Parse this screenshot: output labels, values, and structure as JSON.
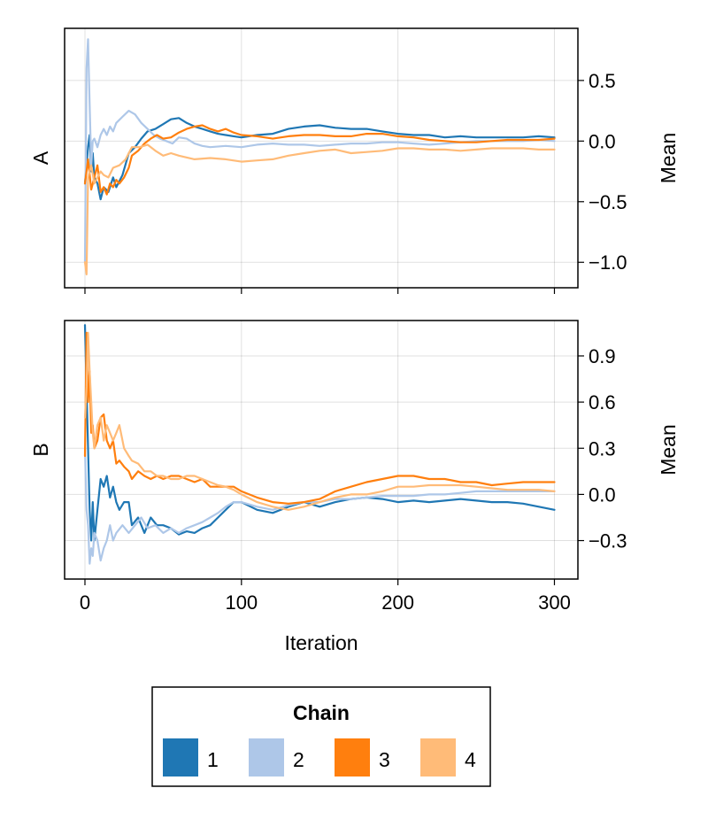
{
  "chart_data": [
    {
      "type": "line",
      "panel_label": "A",
      "ylabel": "Mean",
      "xlabel": "",
      "xlim": [
        -13,
        315
      ],
      "ylim": [
        -1.21,
        0.93
      ],
      "xticks": [
        0,
        100,
        200,
        300
      ],
      "yticks": [
        0.5,
        0.0,
        -0.5,
        -1.0
      ],
      "ytick_labels": [
        "0.5",
        "0.0",
        "−0.5",
        "−1.0"
      ],
      "xtick_labels_visible": false,
      "grid": true,
      "series": [
        {
          "chain": "1",
          "color": "#1f77b4",
          "x": [
            0,
            2,
            3,
            4,
            5,
            6,
            8,
            10,
            12,
            15,
            18,
            20,
            24,
            28,
            32,
            36,
            40,
            45,
            50,
            55,
            60,
            65,
            70,
            75,
            80,
            85,
            90,
            95,
            100,
            110,
            120,
            130,
            140,
            150,
            160,
            170,
            180,
            190,
            200,
            210,
            220,
            230,
            240,
            250,
            260,
            270,
            280,
            290,
            300
          ],
          "y": [
            -0.35,
            -0.05,
            0.05,
            -0.25,
            -0.1,
            -0.3,
            -0.35,
            -0.48,
            -0.38,
            -0.42,
            -0.3,
            -0.38,
            -0.28,
            -0.1,
            -0.05,
            0.02,
            0.08,
            0.1,
            0.14,
            0.18,
            0.19,
            0.15,
            0.12,
            0.1,
            0.08,
            0.06,
            0.05,
            0.04,
            0.03,
            0.05,
            0.06,
            0.1,
            0.12,
            0.13,
            0.11,
            0.1,
            0.1,
            0.08,
            0.06,
            0.05,
            0.05,
            0.03,
            0.04,
            0.03,
            0.03,
            0.03,
            0.03,
            0.04,
            0.03
          ]
        },
        {
          "chain": "2",
          "color": "#aec7e8",
          "x": [
            0,
            1,
            2,
            3,
            4,
            5,
            6,
            8,
            10,
            12,
            14,
            16,
            18,
            20,
            24,
            28,
            32,
            36,
            40,
            44,
            48,
            52,
            56,
            60,
            65,
            70,
            75,
            80,
            90,
            100,
            110,
            120,
            130,
            140,
            150,
            160,
            170,
            180,
            190,
            200,
            210,
            220,
            230,
            240,
            250,
            260,
            270,
            280,
            290,
            300
          ],
          "y": [
            -1.0,
            0.6,
            0.84,
            0.3,
            -0.2,
            0.0,
            0.02,
            -0.05,
            0.05,
            0.1,
            0.05,
            0.12,
            0.08,
            0.15,
            0.2,
            0.25,
            0.22,
            0.15,
            0.1,
            0.05,
            0.02,
            0.0,
            -0.02,
            0.03,
            0.02,
            -0.02,
            -0.04,
            -0.05,
            -0.04,
            -0.05,
            -0.03,
            -0.02,
            -0.03,
            -0.03,
            -0.04,
            -0.03,
            -0.02,
            -0.02,
            -0.01,
            -0.01,
            -0.02,
            -0.03,
            -0.02,
            -0.01,
            0.0,
            0.0,
            0.0,
            0.0,
            0.01,
            0.0
          ]
        },
        {
          "chain": "3",
          "color": "#ff7f0e",
          "x": [
            0,
            2,
            4,
            6,
            8,
            10,
            12,
            14,
            16,
            18,
            20,
            22,
            25,
            28,
            30,
            34,
            38,
            42,
            46,
            50,
            55,
            60,
            65,
            70,
            75,
            80,
            85,
            90,
            95,
            100,
            110,
            120,
            130,
            140,
            150,
            160,
            170,
            180,
            190,
            200,
            210,
            220,
            230,
            240,
            250,
            260,
            270,
            280,
            290,
            300
          ],
          "y": [
            -0.35,
            -0.15,
            -0.4,
            -0.3,
            -0.2,
            -0.42,
            -0.38,
            -0.44,
            -0.35,
            -0.38,
            -0.32,
            -0.35,
            -0.3,
            -0.22,
            -0.12,
            -0.08,
            -0.02,
            0.02,
            0.05,
            0.02,
            0.03,
            0.07,
            0.1,
            0.12,
            0.13,
            0.1,
            0.08,
            0.1,
            0.07,
            0.05,
            0.04,
            0.02,
            0.04,
            0.05,
            0.05,
            0.04,
            0.04,
            0.06,
            0.06,
            0.04,
            0.03,
            0.01,
            0.0,
            -0.01,
            -0.01,
            0.0,
            0.01,
            0.01,
            0.01,
            0.02
          ]
        },
        {
          "chain": "4",
          "color": "#ffbb78",
          "x": [
            0,
            1,
            2,
            3,
            4,
            6,
            8,
            10,
            12,
            15,
            18,
            22,
            26,
            30,
            35,
            40,
            45,
            50,
            55,
            60,
            70,
            80,
            90,
            100,
            110,
            120,
            130,
            140,
            150,
            160,
            170,
            180,
            190,
            200,
            210,
            220,
            230,
            240,
            250,
            260,
            270,
            280,
            290,
            300
          ],
          "y": [
            -1.0,
            -1.1,
            -0.3,
            -0.25,
            -0.2,
            -0.35,
            -0.3,
            -0.25,
            -0.28,
            -0.3,
            -0.22,
            -0.2,
            -0.15,
            -0.05,
            -0.05,
            -0.03,
            -0.08,
            -0.12,
            -0.1,
            -0.12,
            -0.15,
            -0.14,
            -0.15,
            -0.17,
            -0.16,
            -0.15,
            -0.12,
            -0.1,
            -0.08,
            -0.07,
            -0.1,
            -0.09,
            -0.08,
            -0.06,
            -0.06,
            -0.07,
            -0.07,
            -0.08,
            -0.07,
            -0.06,
            -0.06,
            -0.06,
            -0.07,
            -0.07
          ]
        }
      ]
    },
    {
      "type": "line",
      "panel_label": "B",
      "ylabel": "Mean",
      "xlabel": "Iteration",
      "xlim": [
        -13,
        315
      ],
      "ylim": [
        -0.55,
        1.13
      ],
      "xticks": [
        0,
        100,
        200,
        300
      ],
      "xtick_labels": [
        "0",
        "100",
        "200",
        "300"
      ],
      "yticks": [
        0.9,
        0.6,
        0.3,
        0.0,
        -0.3
      ],
      "ytick_labels": [
        "0.9",
        "0.6",
        "0.3",
        "0.0",
        "−0.3"
      ],
      "xtick_labels_visible": true,
      "grid": true,
      "series": [
        {
          "chain": "1",
          "color": "#1f77b4",
          "x": [
            0,
            2,
            3,
            4,
            5,
            6,
            8,
            10,
            12,
            14,
            16,
            18,
            20,
            22,
            25,
            28,
            30,
            34,
            38,
            42,
            46,
            50,
            55,
            60,
            65,
            70,
            75,
            80,
            85,
            90,
            95,
            100,
            110,
            120,
            130,
            140,
            150,
            160,
            170,
            180,
            190,
            200,
            210,
            220,
            230,
            240,
            250,
            260,
            270,
            280,
            290,
            300
          ],
          "y": [
            1.1,
            0.3,
            -0.1,
            -0.3,
            -0.05,
            -0.3,
            -0.1,
            0.1,
            0.05,
            0.12,
            -0.02,
            0.05,
            -0.05,
            -0.1,
            -0.05,
            -0.05,
            -0.2,
            -0.15,
            -0.25,
            -0.15,
            -0.2,
            -0.2,
            -0.22,
            -0.26,
            -0.24,
            -0.25,
            -0.22,
            -0.2,
            -0.15,
            -0.1,
            -0.05,
            -0.05,
            -0.1,
            -0.12,
            -0.08,
            -0.05,
            -0.08,
            -0.05,
            -0.03,
            -0.02,
            -0.03,
            -0.05,
            -0.04,
            -0.05,
            -0.04,
            -0.03,
            -0.04,
            -0.05,
            -0.05,
            -0.06,
            -0.08,
            -0.1
          ]
        },
        {
          "chain": "2",
          "color": "#aec7e8",
          "x": [
            0,
            1,
            2,
            3,
            4,
            5,
            6,
            8,
            10,
            12,
            14,
            16,
            18,
            20,
            24,
            28,
            32,
            36,
            40,
            45,
            50,
            55,
            60,
            65,
            70,
            75,
            80,
            85,
            90,
            95,
            100,
            110,
            120,
            130,
            140,
            150,
            160,
            170,
            180,
            190,
            200,
            210,
            220,
            230,
            240,
            250,
            260,
            270,
            280,
            290,
            300
          ],
          "y": [
            0.3,
            -0.1,
            -0.2,
            -0.45,
            -0.35,
            -0.4,
            -0.25,
            -0.3,
            -0.43,
            -0.35,
            -0.3,
            -0.2,
            -0.3,
            -0.25,
            -0.2,
            -0.25,
            -0.2,
            -0.15,
            -0.22,
            -0.2,
            -0.25,
            -0.22,
            -0.25,
            -0.22,
            -0.2,
            -0.18,
            -0.15,
            -0.12,
            -0.08,
            -0.05,
            -0.05,
            -0.08,
            -0.1,
            -0.07,
            -0.05,
            -0.05,
            -0.03,
            -0.03,
            -0.02,
            -0.01,
            -0.01,
            -0.01,
            0.0,
            0.0,
            0.01,
            0.02,
            0.02,
            0.02,
            0.02,
            0.02,
            0.02
          ]
        },
        {
          "chain": "3",
          "color": "#ff7f0e",
          "x": [
            0,
            1,
            2,
            3,
            4,
            5,
            6,
            8,
            10,
            12,
            14,
            16,
            18,
            20,
            22,
            25,
            28,
            30,
            34,
            38,
            42,
            46,
            50,
            55,
            60,
            65,
            70,
            75,
            80,
            85,
            90,
            95,
            100,
            110,
            120,
            130,
            140,
            150,
            160,
            170,
            180,
            190,
            200,
            210,
            220,
            230,
            240,
            250,
            260,
            270,
            280,
            290,
            300
          ],
          "y": [
            0.25,
            1.05,
            0.6,
            0.8,
            0.4,
            0.45,
            0.3,
            0.35,
            0.5,
            0.52,
            0.35,
            0.3,
            0.35,
            0.2,
            0.22,
            0.18,
            0.15,
            0.1,
            0.15,
            0.12,
            0.1,
            0.12,
            0.1,
            0.12,
            0.12,
            0.1,
            0.08,
            0.1,
            0.05,
            0.05,
            0.05,
            0.05,
            0.02,
            -0.02,
            -0.05,
            -0.06,
            -0.05,
            -0.03,
            0.02,
            0.05,
            0.08,
            0.1,
            0.12,
            0.12,
            0.1,
            0.1,
            0.08,
            0.08,
            0.06,
            0.07,
            0.08,
            0.08,
            0.08
          ]
        },
        {
          "chain": "4",
          "color": "#ffbb78",
          "x": [
            0,
            1,
            2,
            3,
            4,
            5,
            6,
            8,
            10,
            12,
            14,
            16,
            18,
            20,
            22,
            25,
            28,
            30,
            34,
            38,
            42,
            46,
            50,
            55,
            60,
            65,
            70,
            75,
            80,
            85,
            90,
            95,
            100,
            110,
            120,
            130,
            140,
            150,
            160,
            170,
            180,
            190,
            200,
            210,
            220,
            230,
            240,
            250,
            260,
            270,
            280,
            290,
            300
          ],
          "y": [
            0.5,
            0.7,
            1.05,
            0.8,
            0.6,
            0.4,
            0.3,
            0.45,
            0.5,
            0.35,
            0.45,
            0.4,
            0.35,
            0.4,
            0.45,
            0.3,
            0.25,
            0.22,
            0.2,
            0.15,
            0.15,
            0.12,
            0.12,
            0.1,
            0.1,
            0.12,
            0.12,
            0.1,
            0.08,
            0.06,
            0.05,
            0.03,
            0.0,
            -0.05,
            -0.08,
            -0.1,
            -0.08,
            -0.05,
            -0.02,
            0.0,
            0.0,
            0.02,
            0.05,
            0.05,
            0.06,
            0.06,
            0.06,
            0.05,
            0.04,
            0.03,
            0.03,
            0.03,
            0.02
          ]
        }
      ]
    }
  ],
  "legend": {
    "title": "Chain",
    "items": [
      {
        "label": "1",
        "color": "#1f77b4"
      },
      {
        "label": "2",
        "color": "#aec7e8"
      },
      {
        "label": "3",
        "color": "#ff7f0e"
      },
      {
        "label": "4",
        "color": "#ffbb78"
      }
    ]
  }
}
